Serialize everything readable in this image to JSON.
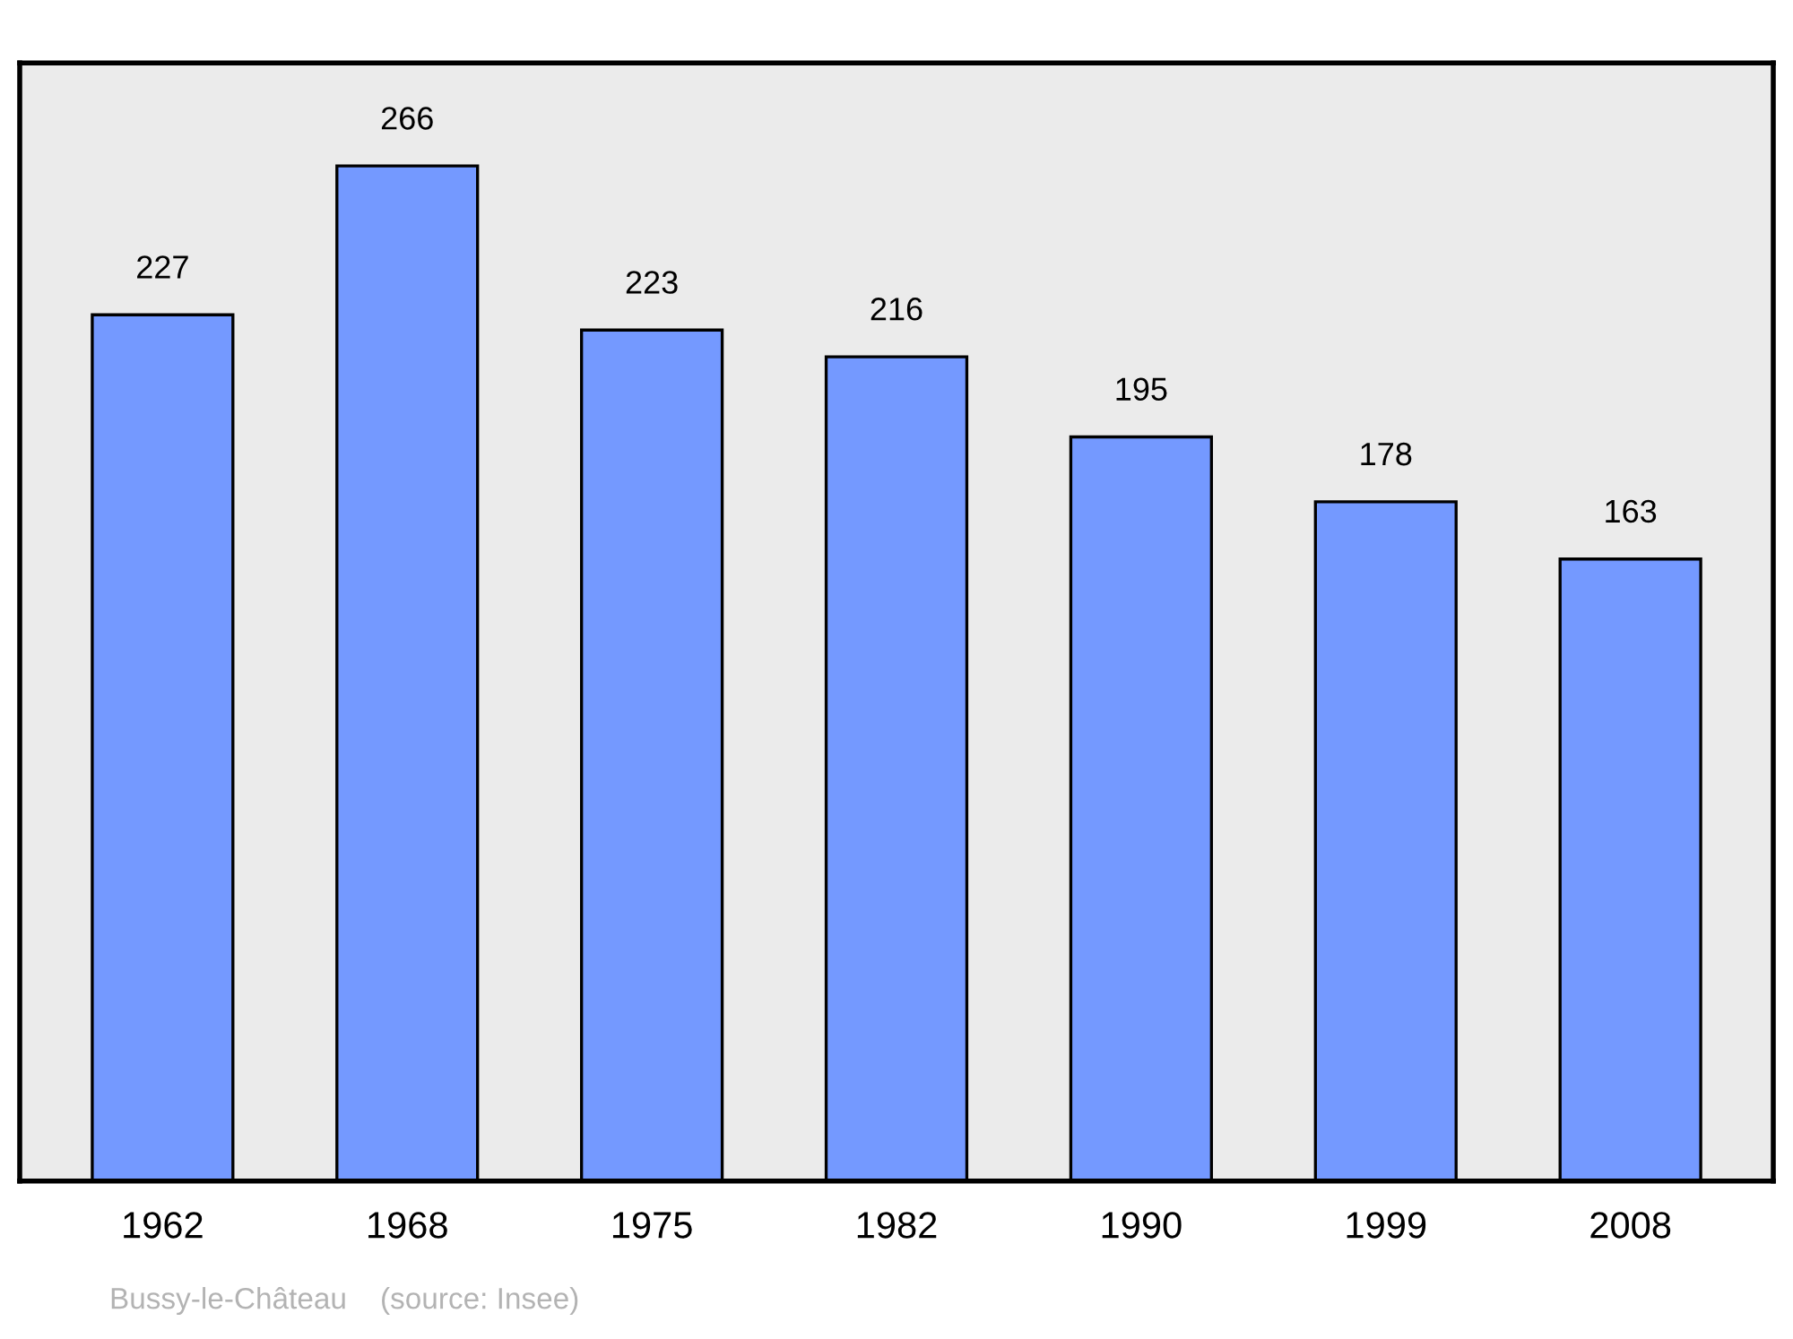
{
  "chart_data": {
    "type": "bar",
    "categories": [
      "1962",
      "1968",
      "1975",
      "1982",
      "1990",
      "1999",
      "2008"
    ],
    "values": [
      227,
      266,
      223,
      216,
      195,
      178,
      163
    ],
    "color": "#7499ff",
    "ylim": [
      0,
      293
    ],
    "tick_labels": "x",
    "grid": false,
    "data_labels": true,
    "annotations": [
      "Bussy-le-Château    (source: Insee)"
    ]
  }
}
